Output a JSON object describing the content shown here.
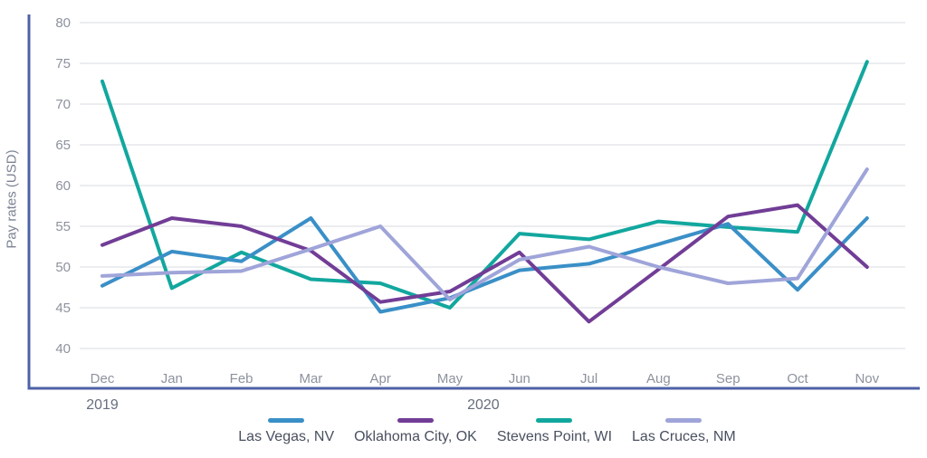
{
  "chart_data": {
    "type": "line",
    "ylabel": "Pay rates (USD)",
    "ylim": [
      40,
      80
    ],
    "yticks": [
      80,
      75,
      70,
      65,
      60,
      55,
      50,
      45,
      40
    ],
    "grid": "horizontal-only",
    "legend_position": "bottom-center",
    "categories": [
      "Dec",
      "Jan",
      "Feb",
      "Mar",
      "Apr",
      "May",
      "Jun",
      "Jul",
      "Aug",
      "Sep",
      "Oct",
      "Nov"
    ],
    "year_labels": [
      {
        "label": "2019",
        "month_index": 0
      },
      {
        "label": "2020",
        "month_index": 5.48
      }
    ],
    "series": [
      {
        "name": "Las Vegas, NV",
        "color": "#3a8fc7",
        "values": [
          47.7,
          51.9,
          50.7,
          56.0,
          44.5,
          46.2,
          49.6,
          50.4,
          52.8,
          55.3,
          47.2,
          56.0
        ]
      },
      {
        "name": "Oklahoma City, OK",
        "color": "#713d96",
        "values": [
          52.7,
          56.0,
          55.0,
          52.0,
          45.7,
          47.0,
          51.8,
          43.3,
          49.7,
          56.2,
          57.6,
          50.0
        ]
      },
      {
        "name": "Stevens Point, WI",
        "color": "#12a79e",
        "values": [
          72.8,
          47.4,
          51.8,
          48.5,
          48.0,
          45.0,
          54.1,
          53.4,
          55.6,
          54.9,
          54.3,
          75.2
        ]
      },
      {
        "name": "Las Cruces, NM",
        "color": "#9fa4d9",
        "values": [
          48.9,
          49.3,
          49.5,
          52.2,
          55.0,
          46.0,
          50.9,
          52.5,
          50.0,
          48.0,
          48.6,
          62.0
        ]
      }
    ],
    "draw_order": [
      2,
      0,
      1,
      3
    ]
  },
  "colors": {
    "axis_spine": "#4e61a7",
    "gridline": "#d9dbe0",
    "tick_text": "#8d929e",
    "year_text": "#666e7e",
    "axis_title_text": "#7b8292",
    "legend_text": "#49505f"
  }
}
